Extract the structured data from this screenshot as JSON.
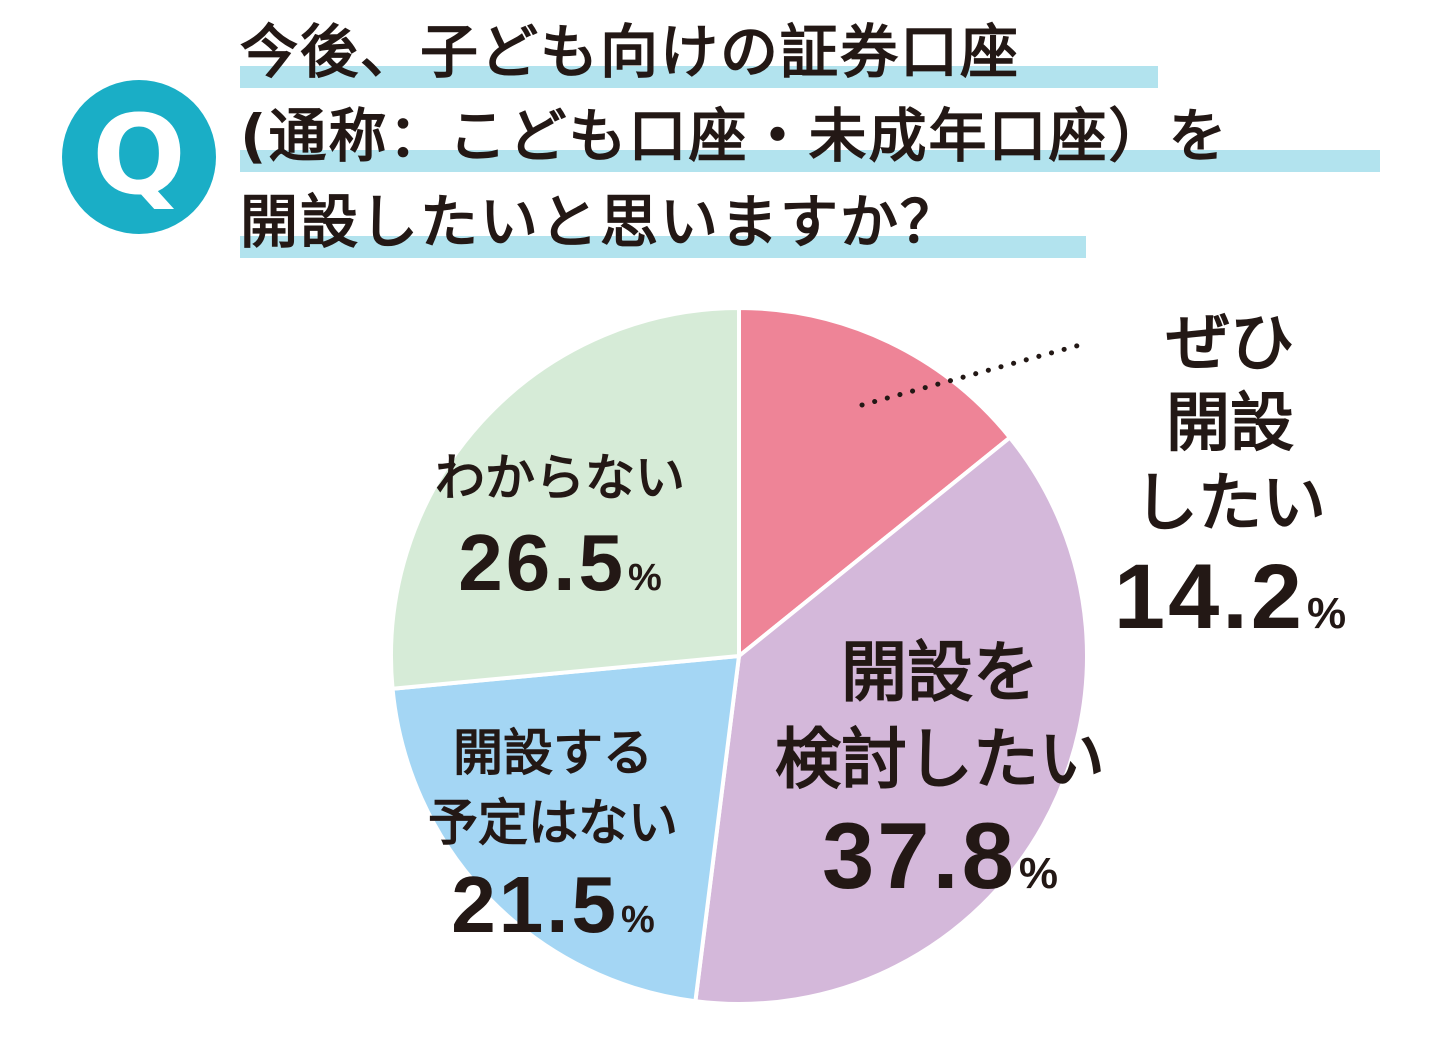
{
  "question": {
    "badge_letter": "Q",
    "badge_color": "#1aaec6",
    "highlight_color": "#b2e3ee",
    "lines": [
      "今後、子ども向けの証券口座",
      "(通称：こども口座・未成年口座）を",
      "開設したいと思いますか？"
    ]
  },
  "chart_data": {
    "type": "pie",
    "title": "今後、子ども向けの証券口座(通称：こども口座・未成年口座）を開設したいと思いますか？",
    "unit": "%",
    "start": "12 o'clock",
    "direction": "clockwise",
    "slices": [
      {
        "label": [
          "ぜひ",
          "開設",
          "したい"
        ],
        "value": 14.2,
        "value_text": "14.2",
        "color": "#ee8497"
      },
      {
        "label": [
          "開設を",
          "検討したい"
        ],
        "value": 37.8,
        "value_text": "37.8",
        "color": "#d4b8da"
      },
      {
        "label": [
          "開設する",
          "予定はない"
        ],
        "value": 21.5,
        "value_text": "21.5",
        "color": "#a4d6f4"
      },
      {
        "label": [
          "わからない"
        ],
        "value": 26.5,
        "value_text": "26.5",
        "color": "#d6ebd7"
      }
    ]
  }
}
